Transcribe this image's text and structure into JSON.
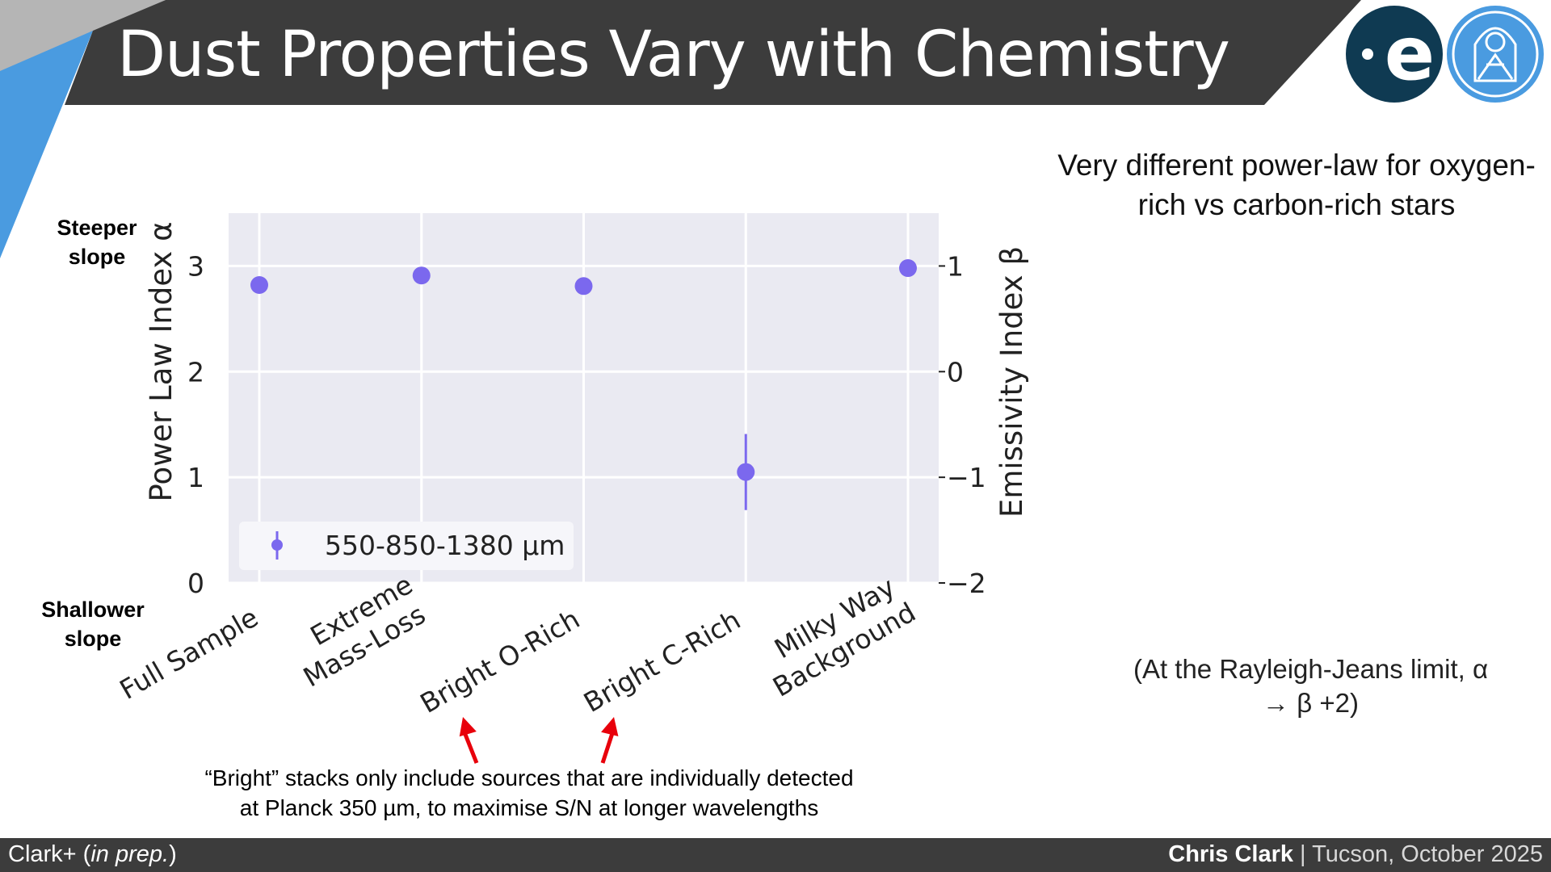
{
  "slide": {
    "title": "Dust Properties Vary with Chemistry",
    "steeper_label": [
      "Steeper",
      "slope"
    ],
    "shallower_label": [
      "Shallower",
      "slope"
    ],
    "right_text": "Very different power-law for oxygen-rich vs carbon-rich stars",
    "rj_note": "(At the Rayleigh-Jeans limit, α → β +2)",
    "bright_note": [
      "“Bright” stacks only include sources that are individually detected",
      "at Planck 350 µm, to maximise S/N at longer wavelengths"
    ],
    "logo_esa_letter": "e",
    "footer_left_prefix": "Clark+ (",
    "footer_left_italic": "in prep.",
    "footer_left_suffix": ")",
    "footer_name": "Chris Clark",
    "footer_sep": " | ",
    "footer_event": "Tucson, October 2025",
    "colors": {
      "banner": "#3c3c3c",
      "accent_blue": "#4a9be0",
      "marker": "#7b68ee",
      "plot_bg": "#eaeaf2",
      "arrow": "#e8000b"
    }
  },
  "chart_data": {
    "type": "scatter",
    "categories": [
      [
        "Full Sample"
      ],
      [
        "Extreme",
        "Mass-Loss"
      ],
      [
        "Bright O-Rich"
      ],
      [
        "Bright C-Rich"
      ],
      [
        "Milky Way",
        "Background"
      ]
    ],
    "series": [
      {
        "name": "550-850-1380 µm",
        "values": [
          2.82,
          2.91,
          2.81,
          1.05,
          2.98
        ],
        "errors": [
          0.02,
          0.02,
          0.02,
          0.36,
          0.02
        ]
      }
    ],
    "ylabel": "Power Law Index α",
    "y2label": "Emissivity Index β",
    "ylim": [
      0,
      3.5
    ],
    "y2lim": [
      -2,
      1.5
    ],
    "yticks": [
      "0",
      "1",
      "2",
      "3"
    ],
    "y2ticks": [
      "−2",
      "−1",
      "0",
      "1"
    ],
    "legend": {
      "label": "550-850-1380 µm",
      "position": "lower-left"
    },
    "annotations": [
      "arrow to Bright O-Rich",
      "arrow to Bright C-Rich"
    ],
    "grid": true
  }
}
